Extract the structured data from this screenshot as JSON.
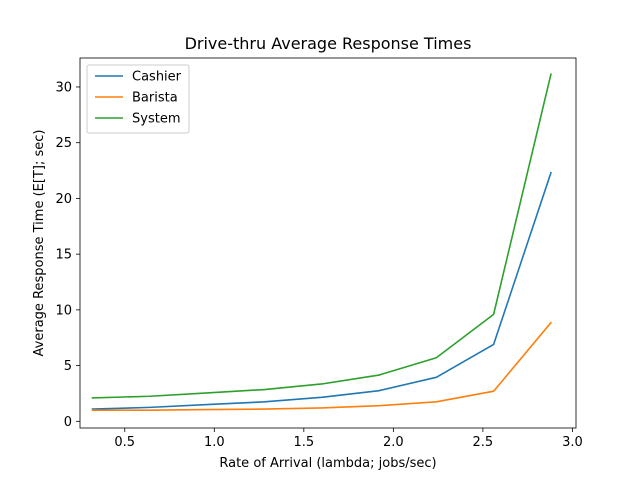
{
  "chart_data": {
    "type": "line",
    "title": "Drive-thru Average Response Times",
    "xlabel": "Rate of Arrival (lambda; jobs/sec)",
    "ylabel": "Average Response Time (E[T]; sec)",
    "xlim": [
      0.25,
      3.02
    ],
    "ylim": [
      -0.6,
      32.6
    ],
    "xticks": [
      0.5,
      1.0,
      1.5,
      2.0,
      2.5,
      3.0
    ],
    "xtick_labels": [
      "0.5",
      "1.0",
      "1.5",
      "2.0",
      "2.5",
      "3.0"
    ],
    "yticks": [
      0,
      5,
      10,
      15,
      20,
      25,
      30
    ],
    "ytick_labels": [
      "0",
      "5",
      "10",
      "15",
      "20",
      "25",
      "30"
    ],
    "grid": false,
    "legend_position": "top-left",
    "x": [
      0.32,
      0.64,
      0.96,
      1.28,
      1.6,
      1.92,
      2.24,
      2.56,
      2.88
    ],
    "series": [
      {
        "name": "Cashier",
        "color": "#1f77b4",
        "values": [
          1.1,
          1.25,
          1.5,
          1.75,
          2.15,
          2.75,
          3.95,
          6.9,
          22.3
        ]
      },
      {
        "name": "Barista",
        "color": "#ff7f0e",
        "values": [
          1.0,
          1.0,
          1.05,
          1.1,
          1.2,
          1.4,
          1.75,
          2.7,
          8.85
        ]
      },
      {
        "name": "System",
        "color": "#2ca02c",
        "values": [
          2.1,
          2.25,
          2.55,
          2.85,
          3.35,
          4.15,
          5.7,
          9.6,
          31.15
        ]
      }
    ]
  }
}
